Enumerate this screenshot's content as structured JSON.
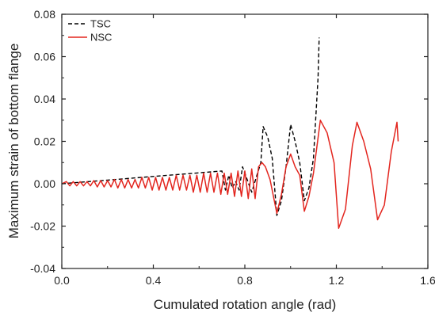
{
  "chart_data": {
    "type": "line",
    "title": "",
    "xlabel": "Cumulated rotation angle (rad)",
    "ylabel": "Maximum strain of bottom flange",
    "xlim": [
      0.0,
      1.6
    ],
    "ylim": [
      -0.04,
      0.08
    ],
    "xticks": [
      0.0,
      0.4,
      0.8,
      1.2,
      1.6
    ],
    "xtick_labels": [
      "0.0",
      "0.4",
      "0.8",
      "1.2",
      "1.6"
    ],
    "yticks": [
      -0.04,
      -0.02,
      0.0,
      0.02,
      0.04,
      0.06,
      0.08
    ],
    "ytick_labels": [
      "-0.04",
      "-0.02",
      "0.00",
      "0.02",
      "0.04",
      "0.06",
      "0.08"
    ],
    "grid": false,
    "legend_position": "top-left",
    "series": [
      {
        "name": "TSC",
        "color": "#000000",
        "dash": "dashed",
        "x": [
          0.0,
          0.7,
          0.715,
          0.73,
          0.745,
          0.76,
          0.775,
          0.79,
          0.81,
          0.83,
          0.85,
          0.87,
          0.88,
          0.9,
          0.92,
          0.94,
          0.96,
          0.98,
          1.0,
          1.02,
          1.04,
          1.06,
          1.08,
          1.1,
          1.12,
          1.125
        ],
        "y": [
          0.0,
          0.006,
          -0.003,
          0.004,
          -0.002,
          0.001,
          -0.003,
          0.008,
          0.002,
          -0.004,
          0.003,
          0.01,
          0.027,
          0.022,
          0.012,
          -0.015,
          -0.008,
          0.008,
          0.028,
          0.02,
          0.01,
          -0.008,
          -0.002,
          0.012,
          0.05,
          0.069
        ]
      },
      {
        "name": "NSC",
        "color": "#e3261f",
        "dash": "solid",
        "x": [
          0.0,
          0.02,
          0.035,
          0.05,
          0.065,
          0.08,
          0.095,
          0.11,
          0.125,
          0.14,
          0.155,
          0.17,
          0.185,
          0.2,
          0.215,
          0.23,
          0.245,
          0.26,
          0.275,
          0.29,
          0.305,
          0.32,
          0.335,
          0.35,
          0.365,
          0.38,
          0.395,
          0.41,
          0.425,
          0.44,
          0.455,
          0.47,
          0.485,
          0.5,
          0.515,
          0.53,
          0.545,
          0.56,
          0.575,
          0.59,
          0.605,
          0.62,
          0.635,
          0.65,
          0.665,
          0.68,
          0.695,
          0.71,
          0.725,
          0.74,
          0.755,
          0.77,
          0.785,
          0.8,
          0.815,
          0.83,
          0.845,
          0.86,
          0.875,
          0.89,
          0.91,
          0.94,
          0.96,
          0.98,
          1.0,
          1.02,
          1.04,
          1.06,
          1.08,
          1.1,
          1.13,
          1.16,
          1.19,
          1.21,
          1.24,
          1.27,
          1.29,
          1.32,
          1.35,
          1.38,
          1.41,
          1.44,
          1.465,
          1.47
        ],
        "y": [
          0.0,
          0.001,
          -0.001,
          0.001,
          -0.001,
          0.001,
          -0.001,
          0.001,
          -0.001,
          0.0015,
          -0.0015,
          0.0015,
          -0.0015,
          0.0015,
          -0.0015,
          0.002,
          -0.002,
          0.002,
          -0.002,
          0.002,
          -0.002,
          0.002,
          -0.002,
          0.003,
          -0.002,
          0.003,
          -0.003,
          0.003,
          -0.003,
          0.003,
          -0.003,
          0.003,
          -0.003,
          0.004,
          -0.003,
          0.004,
          -0.003,
          0.004,
          -0.004,
          0.004,
          -0.004,
          0.005,
          -0.004,
          0.005,
          -0.004,
          0.005,
          -0.005,
          0.005,
          -0.005,
          0.005,
          -0.006,
          0.006,
          -0.006,
          0.006,
          -0.007,
          0.007,
          -0.007,
          0.008,
          0.01,
          0.008,
          0.002,
          -0.014,
          -0.005,
          0.008,
          0.014,
          0.008,
          0.004,
          -0.013,
          -0.006,
          0.005,
          0.03,
          0.024,
          0.01,
          -0.021,
          -0.012,
          0.018,
          0.029,
          0.02,
          0.007,
          -0.017,
          -0.01,
          0.015,
          0.029,
          0.02
        ]
      }
    ]
  }
}
